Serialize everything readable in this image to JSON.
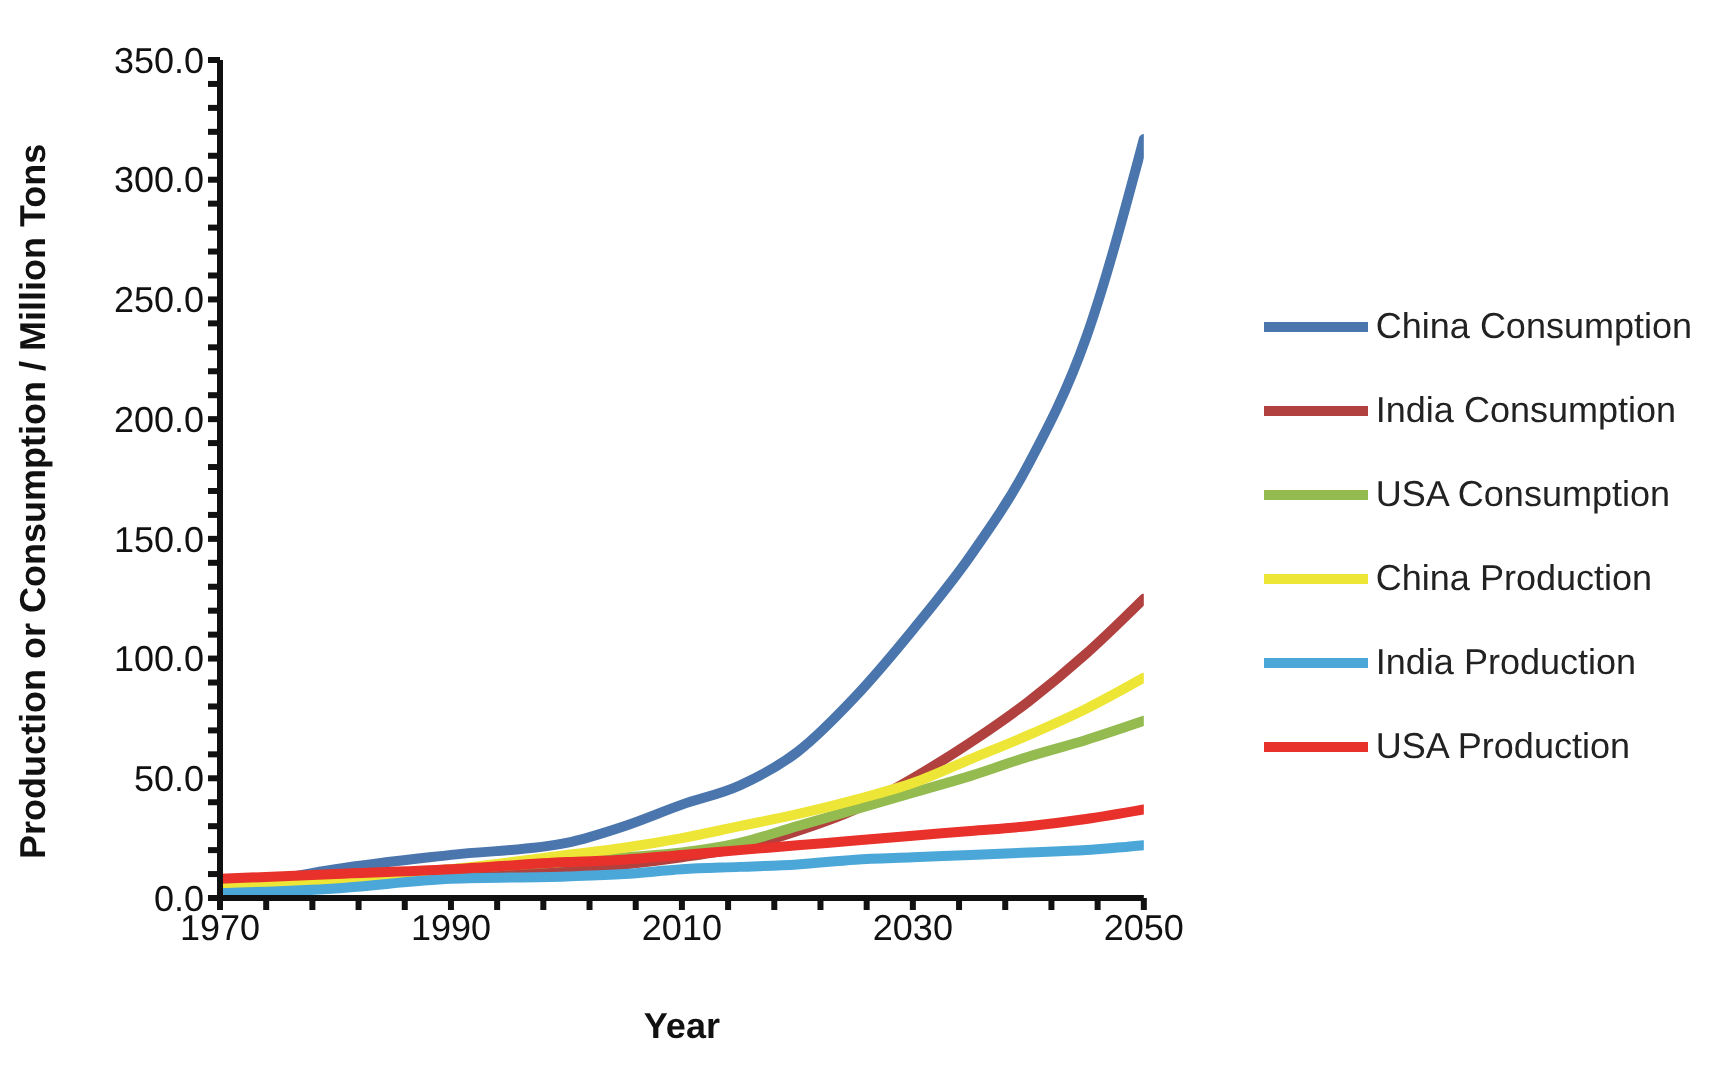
{
  "chart_data": {
    "type": "line",
    "xlabel": "Year",
    "ylabel": "Production or Consumption / Million Tons",
    "x": [
      1970,
      1980,
      1990,
      2000,
      2005,
      2010,
      2015,
      2020,
      2025,
      2030,
      2035,
      2040,
      2045,
      2050
    ],
    "series": [
      {
        "name": "China Consumption",
        "color": "#4a75ad",
        "values": [
          3,
          12,
          18,
          23,
          30,
          39,
          47,
          61,
          84,
          112,
          143,
          181,
          234,
          317
        ]
      },
      {
        "name": "India Consumption",
        "color": "#b0413e",
        "values": [
          2,
          6,
          10,
          12,
          14,
          17,
          21,
          28,
          37,
          50,
          65,
          82,
          102,
          125
        ]
      },
      {
        "name": "USA Consumption",
        "color": "#93bb4f",
        "values": [
          3,
          7,
          12,
          15,
          17,
          19,
          23,
          30,
          37,
          44,
          51,
          59,
          66,
          74
        ]
      },
      {
        "name": "China Production",
        "color": "#ede636",
        "values": [
          5,
          8,
          12,
          18,
          21,
          25,
          30,
          35,
          41,
          48,
          58,
          68,
          79,
          92
        ]
      },
      {
        "name": "India Production",
        "color": "#4aa7d8",
        "values": [
          2,
          4,
          8,
          9,
          10,
          12,
          13,
          14,
          16,
          17,
          18,
          19,
          20,
          22
        ]
      },
      {
        "name": "USA Production",
        "color": "#e8312a",
        "values": [
          8,
          10,
          12,
          15,
          16,
          18,
          20,
          22,
          24,
          26,
          28,
          30,
          33,
          37
        ]
      }
    ],
    "xlim": [
      1970,
      2050
    ],
    "xticks": [
      1970,
      {
        "value": 1974,
        "label": null
      },
      {
        "value": 1978,
        "label": null
      },
      {
        "value": 1982,
        "label": null
      },
      {
        "value": 1986,
        "label": null
      },
      1990,
      {
        "value": 1994,
        "label": null
      },
      {
        "value": 1998,
        "label": null
      },
      {
        "value": 2002,
        "label": null
      },
      {
        "value": 2006,
        "label": null
      },
      2010,
      {
        "value": 2014,
        "label": null
      },
      {
        "value": 2018,
        "label": null
      },
      {
        "value": 2022,
        "label": null
      },
      {
        "value": 2026,
        "label": null
      },
      2030,
      {
        "value": 2034,
        "label": null
      },
      {
        "value": 2038,
        "label": null
      },
      {
        "value": 2042,
        "label": null
      },
      {
        "value": 2046,
        "label": null
      },
      2050
    ],
    "ylim": [
      0,
      350
    ],
    "yticks": [
      {
        "value": 0,
        "label": "0.0"
      },
      {
        "value": 10,
        "label": null
      },
      {
        "value": 20,
        "label": null
      },
      {
        "value": 30,
        "label": null
      },
      {
        "value": 40,
        "label": null
      },
      {
        "value": 50,
        "label": "50.0"
      },
      {
        "value": 60,
        "label": null
      },
      {
        "value": 70,
        "label": null
      },
      {
        "value": 80,
        "label": null
      },
      {
        "value": 90,
        "label": null
      },
      {
        "value": 100,
        "label": "100.0"
      },
      {
        "value": 110,
        "label": null
      },
      {
        "value": 120,
        "label": null
      },
      {
        "value": 130,
        "label": null
      },
      {
        "value": 140,
        "label": null
      },
      {
        "value": 150,
        "label": "150.0"
      },
      {
        "value": 160,
        "label": null
      },
      {
        "value": 170,
        "label": null
      },
      {
        "value": 180,
        "label": null
      },
      {
        "value": 190,
        "label": null
      },
      {
        "value": 200,
        "label": "200.0"
      },
      {
        "value": 210,
        "label": null
      },
      {
        "value": 220,
        "label": null
      },
      {
        "value": 230,
        "label": null
      },
      {
        "value": 240,
        "label": null
      },
      {
        "value": 250,
        "label": "250.0"
      },
      {
        "value": 260,
        "label": null
      },
      {
        "value": 270,
        "label": null
      },
      {
        "value": 280,
        "label": null
      },
      {
        "value": 290,
        "label": null
      },
      {
        "value": 300,
        "label": "300.0"
      },
      {
        "value": 310,
        "label": null
      },
      {
        "value": 320,
        "label": null
      },
      {
        "value": 330,
        "label": null
      },
      {
        "value": 340,
        "label": null
      },
      {
        "value": 350,
        "label": "350.0"
      }
    ],
    "grid": false,
    "legend": "right",
    "marker": "none",
    "line_style": "solid"
  }
}
